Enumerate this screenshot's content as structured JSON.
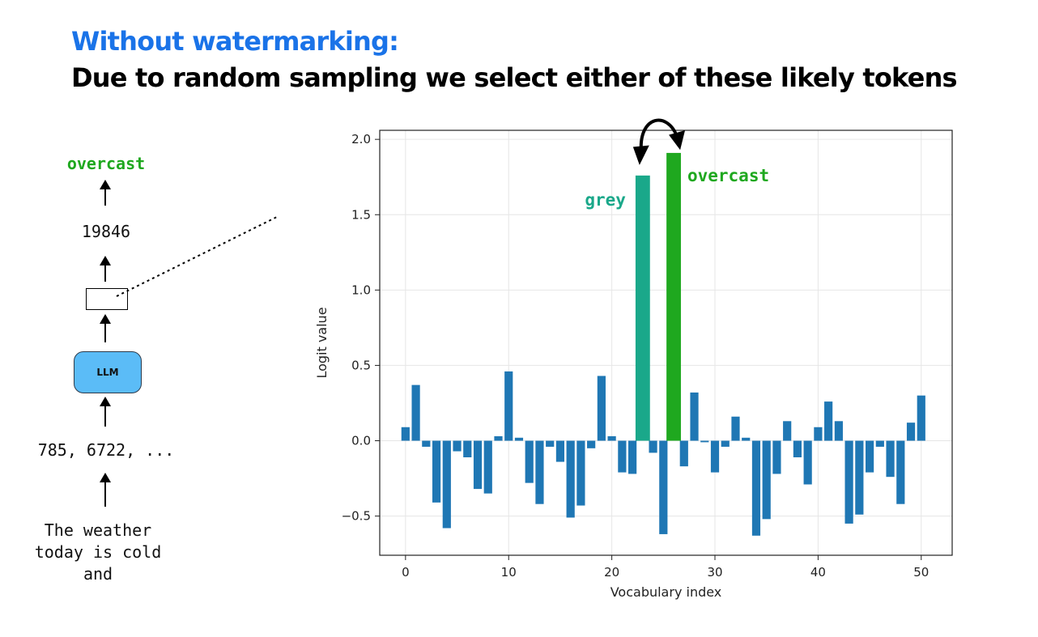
{
  "header": {
    "title": "Without watermarking:",
    "subtitle": "Due to random sampling we select either of these likely tokens"
  },
  "pipeline": {
    "output_token": "overcast",
    "token_id": "19846",
    "model_label": "LLM",
    "input_ids": "785, 6722, ...",
    "input_text": "The weather\ntoday is cold\nand"
  },
  "colors": {
    "title_blue": "#1a73e8",
    "bar_default": "#1f77b4",
    "bar_grey": "#1aa88a",
    "bar_overcast": "#1fa81f",
    "llm_box": "#5bbcf7"
  },
  "chart_data": {
    "type": "bar",
    "xlabel": "Vocabulary index",
    "ylabel": "Logit value",
    "xlim": [
      -2.5,
      53
    ],
    "ylim": [
      -0.76,
      2.06
    ],
    "xticks": [
      0,
      10,
      20,
      30,
      40,
      50
    ],
    "yticks": [
      -0.5,
      0.0,
      0.5,
      1.0,
      1.5,
      2.0
    ],
    "ytick_labels": [
      "−0.5",
      "0.0",
      "0.5",
      "1.0",
      "1.5",
      "2.0"
    ],
    "grid": true,
    "x": [
      0,
      1,
      2,
      3,
      4,
      5,
      6,
      7,
      8,
      9,
      10,
      11,
      12,
      13,
      14,
      15,
      16,
      17,
      18,
      19,
      20,
      21,
      22,
      23,
      24,
      25,
      26,
      27,
      28,
      29,
      30,
      31,
      32,
      33,
      34,
      35,
      36,
      37,
      38,
      39,
      40,
      41,
      42,
      43,
      44,
      45,
      46,
      47,
      48,
      49,
      50
    ],
    "values": [
      0.09,
      0.37,
      -0.04,
      -0.41,
      -0.58,
      -0.07,
      -0.11,
      -0.32,
      -0.35,
      0.03,
      0.46,
      0.02,
      -0.28,
      -0.42,
      -0.04,
      -0.14,
      -0.51,
      -0.43,
      -0.05,
      0.43,
      0.03,
      -0.21,
      -0.22,
      1.76,
      -0.08,
      -0.62,
      1.91,
      -0.17,
      0.32,
      -0.01,
      -0.21,
      -0.04,
      0.16,
      0.02,
      -0.63,
      -0.52,
      -0.22,
      0.13,
      -0.11,
      -0.29,
      0.09,
      0.26,
      0.13,
      -0.55,
      -0.49,
      -0.21,
      -0.04,
      -0.24,
      -0.42,
      0.12,
      0.3
    ],
    "highlights": [
      {
        "index": 23,
        "label": "grey",
        "color": "#1aa88a"
      },
      {
        "index": 26,
        "label": "overcast",
        "color": "#1fa81f"
      }
    ]
  }
}
